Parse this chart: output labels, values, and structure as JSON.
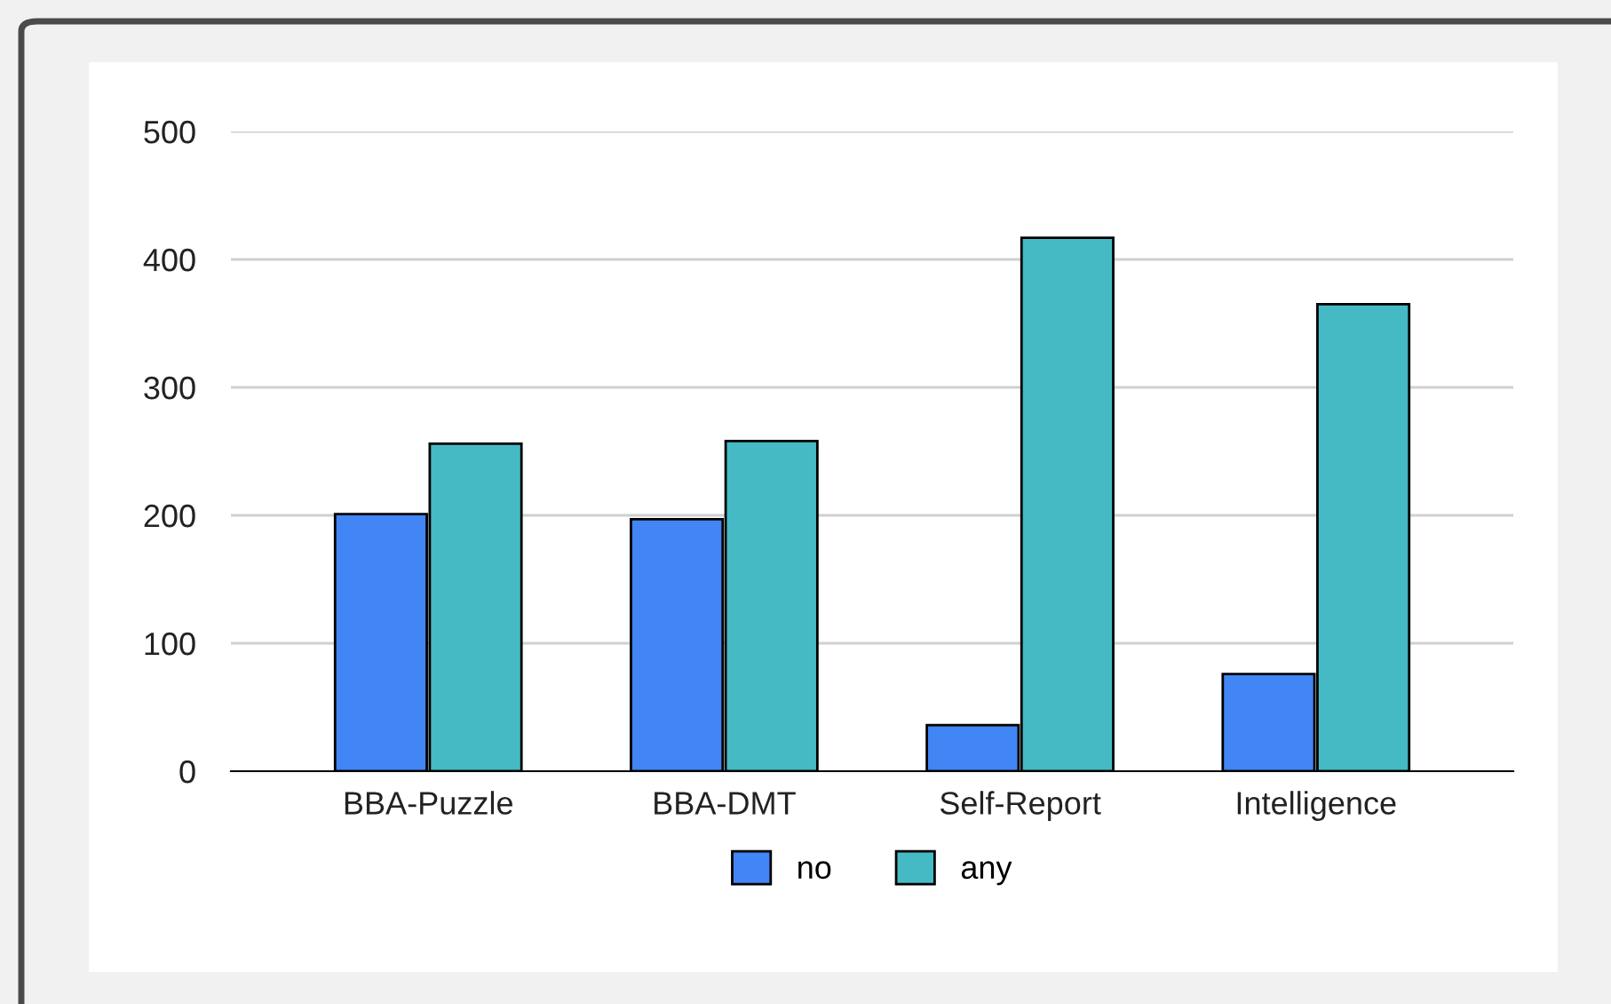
{
  "chart_data": {
    "type": "bar",
    "categories": [
      "BBA-Puzzle",
      "BBA-DMT",
      "Self-Report",
      "Intelligence"
    ],
    "series": [
      {
        "name": "no",
        "color": "#4285f4",
        "values": [
          201,
          197,
          36,
          76
        ]
      },
      {
        "name": "any",
        "color": "#45bac4",
        "values": [
          256,
          258,
          417,
          365
        ]
      }
    ],
    "ylim": [
      0,
      500
    ],
    "yticks": [
      0,
      100,
      200,
      300,
      400,
      500
    ],
    "grid": "y",
    "legend": "bottom"
  }
}
